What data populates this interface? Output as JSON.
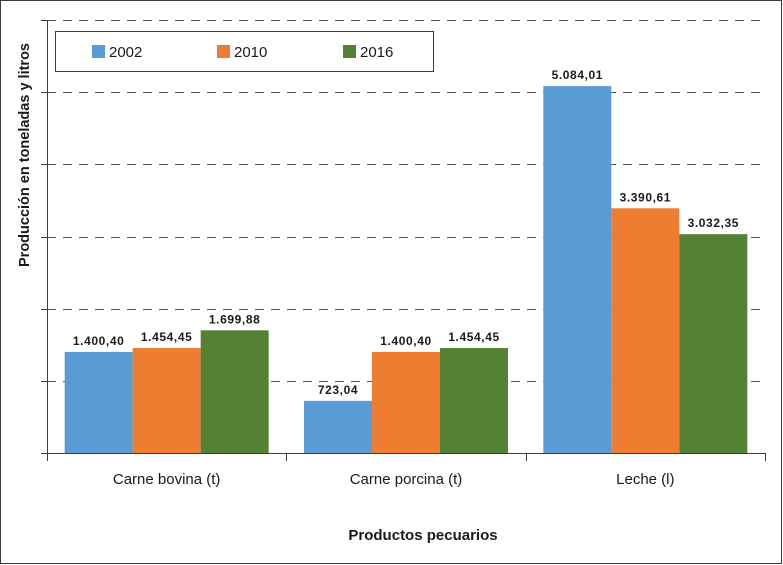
{
  "chart_data": {
    "type": "bar",
    "title": "",
    "xlabel": "Productos pecuarios",
    "ylabel": "Producción en toneladas y litros",
    "ylim": [
      0,
      6000
    ],
    "grid": true,
    "legend_position": "top-left",
    "categories": [
      "Carne bovina (t)",
      "Carne porcina (t)",
      "Leche (l)"
    ],
    "series": [
      {
        "name": "2002",
        "color": "#5b9bd5",
        "values": [
          1400.4,
          723.04,
          5084.01
        ],
        "labels": [
          "1.400,40",
          "723,04",
          "5.084,01"
        ]
      },
      {
        "name": "2010",
        "color": "#ed7d31",
        "values": [
          1454.45,
          1400.4,
          3390.61
        ],
        "labels": [
          "1.454,45",
          "1.400,40",
          "3.390,61"
        ]
      },
      {
        "name": "2016",
        "color": "#548235",
        "values": [
          1699.88,
          1454.45,
          3032.35
        ],
        "labels": [
          "1.699,88",
          "1.454,45",
          "3.032,35"
        ]
      }
    ]
  }
}
